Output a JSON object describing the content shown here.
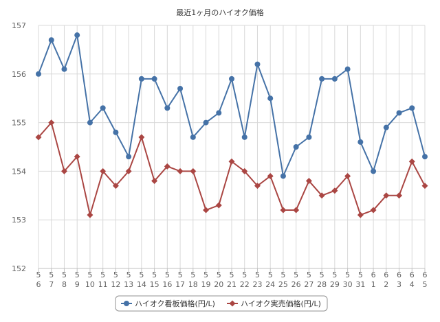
{
  "chart_data": {
    "type": "line",
    "title": "最近1ヶ月のハイオク価格",
    "ylim": [
      152,
      157
    ],
    "yticks": [
      152,
      153,
      154,
      155,
      156,
      157
    ],
    "grid": true,
    "legend_position": "bottom-center",
    "categories": [
      {
        "m": "5",
        "d": "6"
      },
      {
        "m": "5",
        "d": "7"
      },
      {
        "m": "5",
        "d": "8"
      },
      {
        "m": "5",
        "d": "9"
      },
      {
        "m": "5",
        "d": "10"
      },
      {
        "m": "5",
        "d": "11"
      },
      {
        "m": "5",
        "d": "12"
      },
      {
        "m": "5",
        "d": "13"
      },
      {
        "m": "5",
        "d": "14"
      },
      {
        "m": "5",
        "d": "15"
      },
      {
        "m": "5",
        "d": "16"
      },
      {
        "m": "5",
        "d": "17"
      },
      {
        "m": "5",
        "d": "18"
      },
      {
        "m": "5",
        "d": "19"
      },
      {
        "m": "5",
        "d": "20"
      },
      {
        "m": "5",
        "d": "21"
      },
      {
        "m": "5",
        "d": "22"
      },
      {
        "m": "5",
        "d": "23"
      },
      {
        "m": "5",
        "d": "24"
      },
      {
        "m": "5",
        "d": "25"
      },
      {
        "m": "5",
        "d": "26"
      },
      {
        "m": "5",
        "d": "27"
      },
      {
        "m": "5",
        "d": "28"
      },
      {
        "m": "5",
        "d": "29"
      },
      {
        "m": "5",
        "d": "30"
      },
      {
        "m": "5",
        "d": "31"
      },
      {
        "m": "6",
        "d": "1"
      },
      {
        "m": "6",
        "d": "2"
      },
      {
        "m": "6",
        "d": "3"
      },
      {
        "m": "6",
        "d": "4"
      },
      {
        "m": "6",
        "d": "5"
      }
    ],
    "series": [
      {
        "name": "ハイオク看板価格(円/L)",
        "color": "#4572a7",
        "marker": "circle",
        "values": [
          156.0,
          156.7,
          156.1,
          156.8,
          155.0,
          155.3,
          154.8,
          154.3,
          155.9,
          155.9,
          155.3,
          155.7,
          154.7,
          155.0,
          155.2,
          155.9,
          154.7,
          156.2,
          155.5,
          153.9,
          154.5,
          154.7,
          155.9,
          155.9,
          156.1,
          154.6,
          154.0,
          154.9,
          155.2,
          155.3,
          154.3
        ]
      },
      {
        "name": "ハイオク実売価格(円/L)",
        "color": "#aa4643",
        "marker": "diamond",
        "values": [
          154.7,
          155.0,
          154.0,
          154.3,
          153.1,
          154.0,
          153.7,
          154.0,
          154.7,
          153.8,
          154.1,
          154.0,
          154.0,
          153.2,
          153.3,
          154.2,
          154.0,
          153.7,
          153.9,
          153.2,
          153.2,
          153.8,
          153.5,
          153.6,
          153.9,
          153.1,
          153.2,
          153.5,
          153.5,
          154.2,
          153.7
        ]
      }
    ]
  }
}
